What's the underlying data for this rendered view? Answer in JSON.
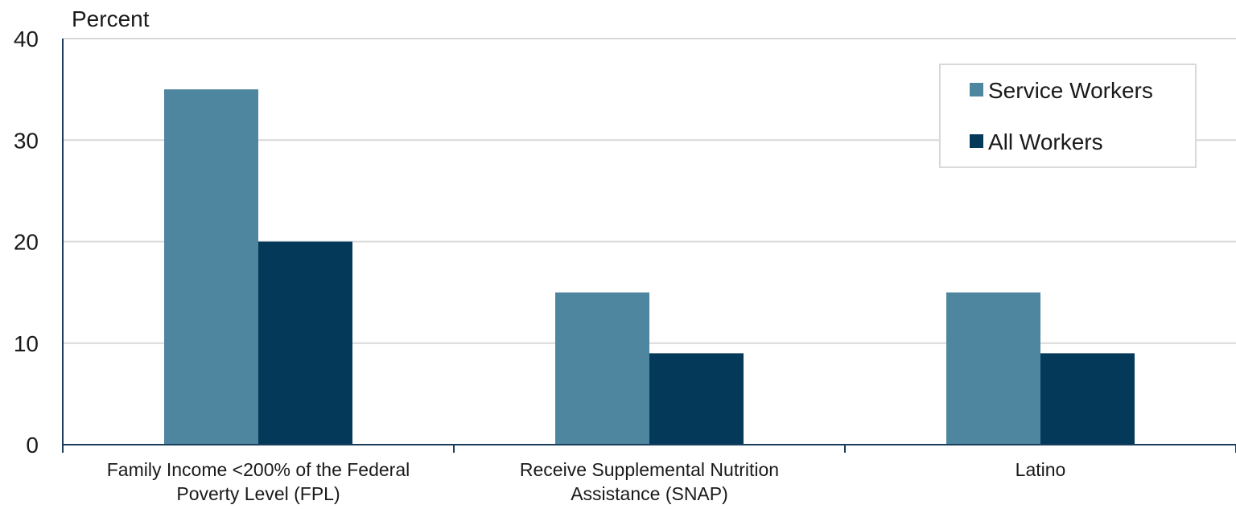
{
  "chart_data": {
    "type": "bar",
    "ylabel": "Percent",
    "ylim": [
      0,
      40
    ],
    "yticks": [
      0,
      10,
      20,
      30,
      40
    ],
    "grid": true,
    "legend_position": "top-right",
    "categories": [
      [
        "Family Income <200% of the Federal",
        "Poverty Level (FPL)"
      ],
      [
        "Receive Supplemental Nutrition",
        "Assistance (SNAP)"
      ],
      [
        "Latino"
      ]
    ],
    "series": [
      {
        "name": "Service Workers",
        "color": "#4e86a0",
        "values": [
          35,
          15,
          15
        ]
      },
      {
        "name": "All Workers",
        "color": "#04395a",
        "values": [
          20,
          9,
          9
        ]
      }
    ]
  }
}
